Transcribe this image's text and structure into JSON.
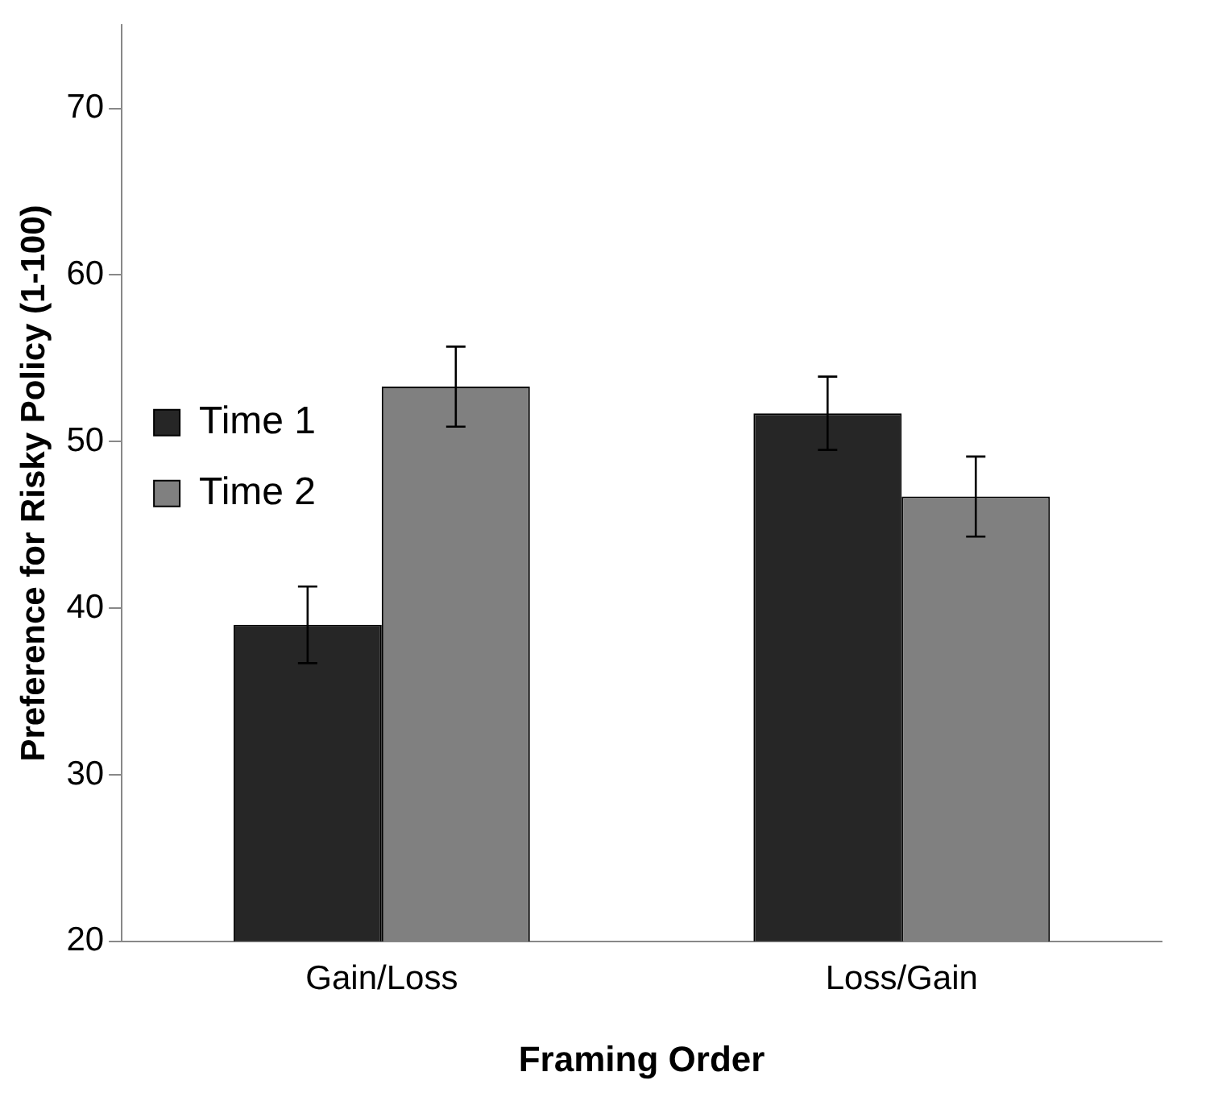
{
  "chart_data": {
    "type": "bar",
    "xlabel": "Framing Order",
    "ylabel": "Preference for Risky Policy (1-100)",
    "categories": [
      "Gain/Loss",
      "Loss/Gain"
    ],
    "series": [
      {
        "name": "Time 1",
        "color": "#262626",
        "values": [
          39.0,
          51.7
        ],
        "errors": [
          2.3,
          2.2
        ]
      },
      {
        "name": "Time 2",
        "color": "#808080",
        "values": [
          53.3,
          46.7
        ],
        "errors": [
          2.4,
          2.4
        ]
      }
    ],
    "ylim": [
      20,
      75
    ],
    "yticks": [
      20,
      30,
      40,
      50,
      60,
      70
    ],
    "grid": false,
    "legend": "top"
  }
}
